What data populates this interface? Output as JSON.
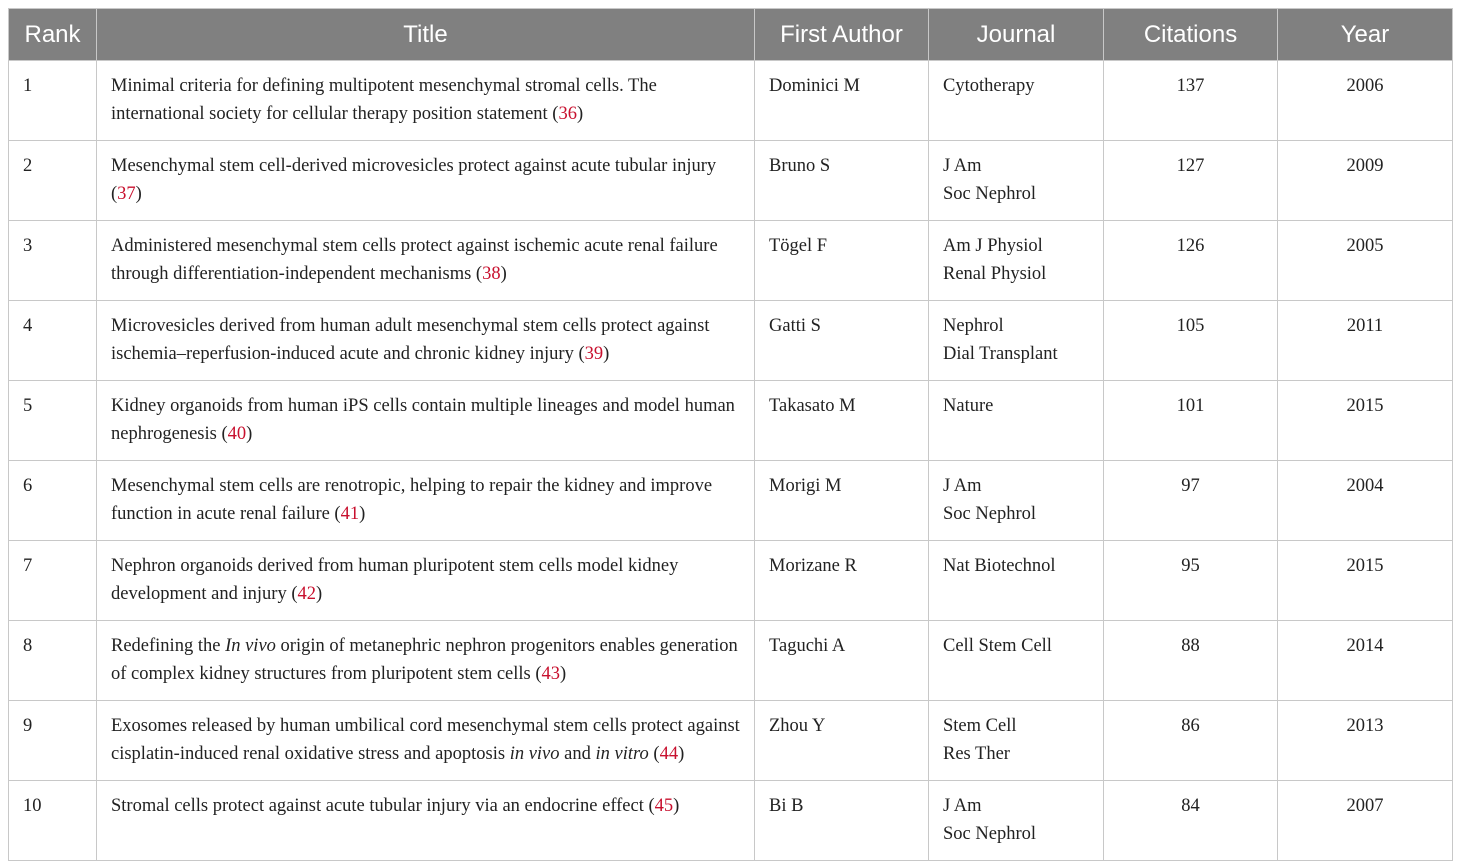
{
  "headers": [
    "Rank",
    "Title",
    "First Author",
    "Journal",
    "Citations",
    "Year"
  ],
  "accent_colors": {
    "header_bg": "#808080",
    "reference": "#c8102e"
  },
  "rows": [
    {
      "rank": "1",
      "title": [
        {
          "t": "Minimal criteria for defining multipotent mesenchymal stromal cells. The international society for cellular therapy position statement ("
        },
        {
          "t": "36",
          "s": "ref"
        },
        {
          "t": ")"
        }
      ],
      "author": "Dominici M",
      "journal": [
        "Cytotherapy"
      ],
      "citations": "137",
      "year": "2006"
    },
    {
      "rank": "2",
      "title": [
        {
          "t": "Mesenchymal stem cell-derived microvesicles protect against acute tubular injury ("
        },
        {
          "t": "37",
          "s": "ref"
        },
        {
          "t": ")"
        }
      ],
      "author": "Bruno S",
      "journal": [
        "J Am",
        "Soc Nephrol"
      ],
      "citations": "127",
      "year": "2009"
    },
    {
      "rank": "3",
      "title": [
        {
          "t": "Administered mesenchymal stem cells protect against ischemic acute renal failure through differentiation-independent mechanisms ("
        },
        {
          "t": "38",
          "s": "ref"
        },
        {
          "t": ")"
        }
      ],
      "author": "Tögel F",
      "journal": [
        "Am J Physiol",
        "Renal Physiol"
      ],
      "citations": "126",
      "year": "2005"
    },
    {
      "rank": "4",
      "title": [
        {
          "t": "Microvesicles derived from human adult mesenchymal stem cells protect against ischemia–reperfusion-induced acute and chronic kidney injury ("
        },
        {
          "t": "39",
          "s": "ref"
        },
        {
          "t": ")"
        }
      ],
      "author": "Gatti S",
      "journal": [
        "Nephrol",
        "Dial Transplant"
      ],
      "citations": "105",
      "year": "2011"
    },
    {
      "rank": "5",
      "title": [
        {
          "t": "Kidney organoids from human iPS cells contain multiple lineages and model human nephrogenesis ("
        },
        {
          "t": "40",
          "s": "ref"
        },
        {
          "t": ")"
        }
      ],
      "author": "Takasato M",
      "journal": [
        "Nature"
      ],
      "citations": "101",
      "year": "2015"
    },
    {
      "rank": "6",
      "title": [
        {
          "t": "Mesenchymal stem cells are renotropic, helping to repair the kidney and improve function in acute renal failure ("
        },
        {
          "t": "41",
          "s": "ref"
        },
        {
          "t": ")"
        }
      ],
      "author": "Morigi M",
      "journal": [
        "J Am",
        "Soc Nephrol"
      ],
      "citations": "97",
      "year": "2004"
    },
    {
      "rank": "7",
      "title": [
        {
          "t": "Nephron organoids derived from human pluripotent stem cells model kidney development and injury ("
        },
        {
          "t": "42",
          "s": "ref"
        },
        {
          "t": ")"
        }
      ],
      "author": "Morizane R",
      "journal": [
        "Nat Biotechnol"
      ],
      "citations": "95",
      "year": "2015"
    },
    {
      "rank": "8",
      "title": [
        {
          "t": "Redefining the "
        },
        {
          "t": "In vivo",
          "s": "it"
        },
        {
          "t": " origin of metanephric nephron progenitors enables generation of complex kidney structures from pluripotent stem cells ("
        },
        {
          "t": "43",
          "s": "ref"
        },
        {
          "t": ")"
        }
      ],
      "author": "Taguchi A",
      "journal": [
        "Cell Stem Cell"
      ],
      "citations": "88",
      "year": "2014"
    },
    {
      "rank": "9",
      "title": [
        {
          "t": "Exosomes released by human umbilical cord mesenchymal stem cells protect against cisplatin-induced renal oxidative stress and apoptosis "
        },
        {
          "t": "in vivo",
          "s": "it"
        },
        {
          "t": " and "
        },
        {
          "t": "in vitro",
          "s": "it"
        },
        {
          "t": " ("
        },
        {
          "t": "44",
          "s": "ref"
        },
        {
          "t": ")"
        }
      ],
      "author": "Zhou Y",
      "journal": [
        "Stem Cell",
        "Res Ther"
      ],
      "citations": "86",
      "year": "2013"
    },
    {
      "rank": "10",
      "title": [
        {
          "t": "Stromal cells protect against acute tubular injury via an endocrine effect ("
        },
        {
          "t": "45",
          "s": "ref"
        },
        {
          "t": ")"
        }
      ],
      "author": "Bi B",
      "journal": [
        "J Am",
        "Soc Nephrol"
      ],
      "citations": "84",
      "year": "2007"
    }
  ]
}
